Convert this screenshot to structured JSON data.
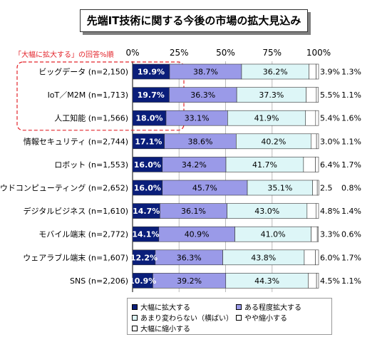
{
  "title": "先端IT技術に関する今後の市場の拡大見込み",
  "note": "「大幅に拡大する」の回答%順",
  "legend": {
    "items": [
      {
        "label": "大幅に拡大する",
        "color": "#0a1e7a"
      },
      {
        "label": "ある程度拡大する",
        "color": "#9a9ae8"
      },
      {
        "label": "あまり変わらない（横ばい）",
        "color": "#ddf6f7"
      },
      {
        "label": "やや縮小する",
        "color": "#ffffff"
      },
      {
        "label": "大幅に縮小する",
        "color": "#ffffff"
      }
    ]
  },
  "chart_data": {
    "type": "bar",
    "orientation": "horizontal-stacked-100",
    "title": "先端IT技術に関する今後の市場の拡大見込み",
    "xticks": [
      "0%",
      "25%",
      "50%",
      "75%",
      "100%"
    ],
    "xlim": [
      0,
      100
    ],
    "highlight_note": "「大幅に拡大する」の回答%順",
    "categories": [
      "ビッグデータ (n=2,150)",
      "IoT／M2M (n=1,713)",
      "人工知能 (n=1,566)",
      "情報セキュリティ (n=2,744)",
      "ロボット (n=1,553)",
      "クラウドコンピューティング (n=2,652)",
      "デジタルビジネス (n=1,610)",
      "モバイル端末 (n=2,772)",
      "ウェアラブル端末 (n=1,607)",
      "SNS (n=2,206)"
    ],
    "series": [
      {
        "name": "大幅に拡大する",
        "color": "#0a1e7a",
        "values": [
          19.9,
          19.7,
          18.0,
          17.1,
          16.0,
          16.0,
          14.7,
          14.1,
          12.2,
          10.9
        ],
        "labels": [
          "19.9%",
          "19.7%",
          "18.0%",
          "17.1%",
          "16.0%",
          "16.0%",
          "14.7%",
          "14.1%",
          "12.2%",
          "10.9%"
        ]
      },
      {
        "name": "ある程度拡大する",
        "color": "#9a9ae8",
        "values": [
          38.7,
          36.3,
          33.1,
          38.6,
          34.2,
          45.7,
          36.1,
          40.9,
          36.3,
          39.2
        ],
        "labels": [
          "38.7%",
          "36.3%",
          "33.1%",
          "38.6%",
          "34.2%",
          "45.7%",
          "36.1%",
          "40.9%",
          "36.3%",
          "39.2%"
        ]
      },
      {
        "name": "あまり変わらない（横ばい）",
        "color": "#ddf6f7",
        "values": [
          36.2,
          37.3,
          41.9,
          40.2,
          41.7,
          35.1,
          43.0,
          41.0,
          43.8,
          44.3
        ],
        "labels": [
          "36.2%",
          "37.3%",
          "41.9%",
          "40.2%",
          "41.7%",
          "35.1%",
          "43.0%",
          "41.0%",
          "43.8%",
          "44.3%"
        ]
      },
      {
        "name": "やや縮小する",
        "color": "#ffffff",
        "values": [
          3.9,
          5.5,
          5.4,
          3.0,
          6.4,
          2.5,
          4.8,
          3.3,
          6.0,
          4.5
        ],
        "labels": [
          "3.9%",
          "5.5%",
          "5.4%",
          "3.0%",
          "6.4%",
          "2.5",
          "4.8%",
          "3.3%",
          "6.0%",
          "4.5%"
        ]
      },
      {
        "name": "大幅に縮小する",
        "color": "#ffffff",
        "values": [
          1.3,
          1.1,
          1.6,
          1.1,
          1.7,
          0.8,
          1.4,
          0.6,
          1.7,
          1.1
        ],
        "labels": [
          "1.3%",
          "1.1%",
          "1.6%",
          "1.1%",
          "1.7%",
          "0.8%",
          "1.4%",
          "0.6%",
          "1.7%",
          "1.1%"
        ]
      }
    ],
    "grid": true,
    "legend_position": "bottom"
  }
}
